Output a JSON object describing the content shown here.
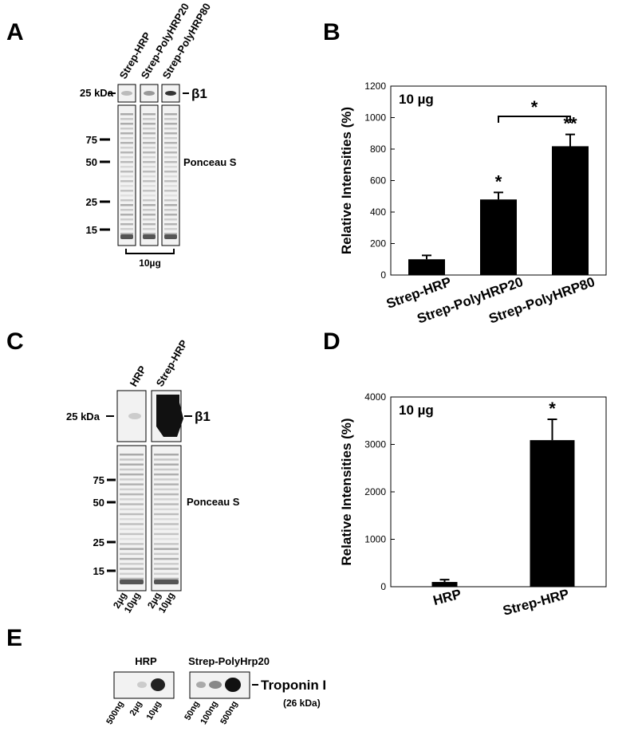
{
  "panel_labels": [
    "A",
    "B",
    "C",
    "D",
    "E"
  ],
  "blot_a": {
    "lanes": [
      "Strep-HRP",
      "Strep-PolyHRP20",
      "Strep-PolyHRP80"
    ],
    "size_marker": "25 kDa",
    "target": "β1",
    "markers": [
      "75",
      "50",
      "25",
      "15"
    ],
    "stain": "Ponceau S",
    "load": "10µg"
  },
  "blot_c": {
    "lanes": [
      "HRP",
      "Strep-HRP"
    ],
    "size_marker": "25 kDa",
    "target": "β1",
    "markers": [
      "75",
      "50",
      "25",
      "15"
    ],
    "stain": "Ponceau S",
    "loads": [
      "2µg",
      "10µg",
      "2µg",
      "10µg"
    ]
  },
  "blot_e": {
    "groups": [
      "HRP",
      "Strep-PolyHrp20"
    ],
    "loads": [
      "500ng",
      "2µg",
      "10µg",
      "50ng",
      "100ng",
      "500ng"
    ],
    "target": "Troponin I",
    "target_size": "(26 kDa)"
  },
  "chart_data": [
    {
      "type": "bar",
      "y_label": "Relative Intensities (%)",
      "annotation": "10 µg",
      "categories": [
        "Strep-HRP",
        "Strep-PolyHRP20",
        "Strep-PolyHRP80"
      ],
      "values": [
        100,
        480,
        818
      ],
      "errors": [
        25,
        45,
        75
      ],
      "value_annotations": [
        null,
        "*",
        "**"
      ],
      "bracket_label": "*",
      "color": "#000000",
      "ylim": [
        0,
        1200
      ],
      "yticks": [
        0,
        200,
        400,
        600,
        800,
        1000,
        1200
      ]
    },
    {
      "type": "bar",
      "y_label": "Relative Intensities (%)",
      "annotation": "10 µg",
      "categories": [
        "HRP",
        "Strep-HRP"
      ],
      "values": [
        100,
        3090
      ],
      "errors": [
        50,
        440
      ],
      "value_annotations": [
        null,
        "*"
      ],
      "color": "#000000",
      "ylim": [
        0,
        4000
      ],
      "yticks": [
        0,
        1000,
        2000,
        3000,
        4000
      ]
    }
  ]
}
